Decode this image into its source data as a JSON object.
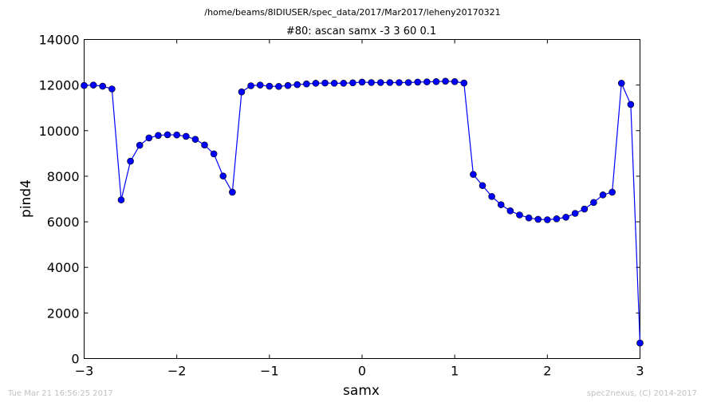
{
  "chart_data": {
    "type": "line",
    "suptitle": "/home/beams/8IDIUSER/spec_data/2017/Mar2017/leheny20170321",
    "title": "#80: ascan  samx -3 3  60 0.1",
    "xlabel": "samx",
    "ylabel": "pind4",
    "xlim": [
      -3,
      3
    ],
    "ylim": [
      0,
      14000
    ],
    "xticks": [
      -3,
      -2,
      -1,
      0,
      1,
      2,
      3
    ],
    "yticks": [
      0,
      2000,
      4000,
      6000,
      8000,
      10000,
      12000,
      14000
    ],
    "grid": false,
    "color": "#0000ff",
    "series": [
      {
        "x": [
          -3.0,
          -2.9,
          -2.8,
          -2.7,
          -2.6,
          -2.5,
          -2.4,
          -2.3,
          -2.2,
          -2.1,
          -2.0,
          -1.9,
          -1.8,
          -1.7,
          -1.6,
          -1.5,
          -1.4,
          -1.3,
          -1.2,
          -1.1,
          -1.0,
          -0.9,
          -0.8,
          -0.7,
          -0.6,
          -0.5,
          -0.4,
          -0.3,
          -0.2,
          -0.1,
          0.0,
          0.1,
          0.2,
          0.3,
          0.4,
          0.5,
          0.6,
          0.7,
          0.8,
          0.9,
          1.0,
          1.1,
          1.2,
          1.3,
          1.4,
          1.5,
          1.6,
          1.7,
          1.8,
          1.9,
          2.0,
          2.1,
          2.2,
          2.3,
          2.4,
          2.5,
          2.6,
          2.7,
          2.8,
          2.9,
          3.0
        ],
        "y": [
          11980,
          12000,
          11950,
          11830,
          6960,
          8660,
          9360,
          9680,
          9790,
          9820,
          9810,
          9750,
          9620,
          9370,
          8980,
          8010,
          7300,
          11700,
          11970,
          12000,
          11950,
          11940,
          11980,
          12020,
          12050,
          12080,
          12090,
          12080,
          12080,
          12100,
          12130,
          12110,
          12110,
          12110,
          12110,
          12110,
          12130,
          12140,
          12150,
          12170,
          12150,
          12090,
          8080,
          7590,
          7110,
          6750,
          6480,
          6300,
          6170,
          6110,
          6090,
          6130,
          6200,
          6370,
          6560,
          6850,
          7180,
          7300,
          12080,
          11150,
          680
        ]
      }
    ]
  },
  "footer": {
    "timestamp": "Tue Mar 21 16:56:25 2017",
    "credit": "spec2nexus, (C) 2014-2017"
  }
}
